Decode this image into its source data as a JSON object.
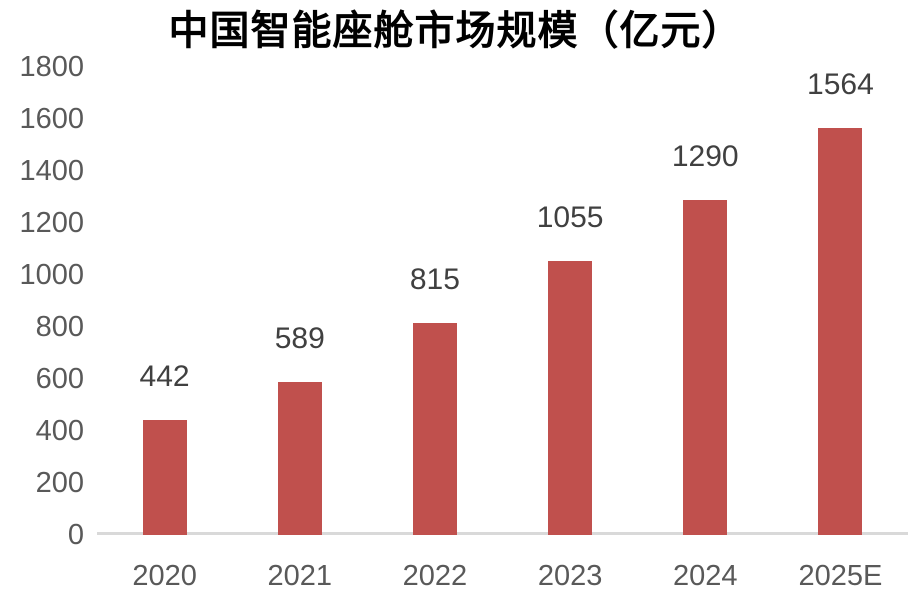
{
  "chart_data": {
    "type": "bar",
    "title": "中国智能座舱市场规模（亿元）",
    "categories": [
      "2020",
      "2021",
      "2022",
      "2023",
      "2024",
      "2025E"
    ],
    "values": [
      442,
      589,
      815,
      1055,
      1290,
      1564
    ],
    "xlabel": "",
    "ylabel": "",
    "ylim": [
      0,
      1800
    ],
    "ytick_interval": 200,
    "yticks": [
      0,
      200,
      400,
      600,
      800,
      1000,
      1200,
      1400,
      1600,
      1800
    ],
    "grid": false,
    "legend": "none",
    "colors": {
      "bar": "#c0504d",
      "tick_label": "#595959",
      "data_label": "#404040",
      "title": "#000000",
      "axis_line": "#d9d9d9",
      "background": "#ffffff"
    }
  }
}
